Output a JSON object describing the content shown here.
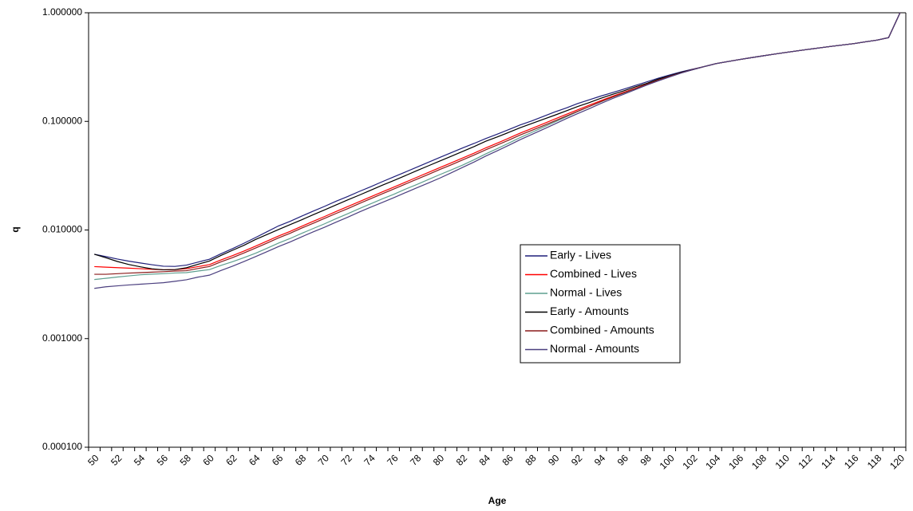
{
  "chart_data": {
    "type": "line",
    "xlabel": "Age",
    "ylabel": "q",
    "categories": [
      "50",
      null,
      "52",
      null,
      "54",
      null,
      "56",
      null,
      "58",
      null,
      "60",
      null,
      "62",
      null,
      "64",
      null,
      "66",
      null,
      "68",
      null,
      "70",
      null,
      "72",
      null,
      "74",
      null,
      "76",
      null,
      "78",
      null,
      "80",
      null,
      "82",
      null,
      "84",
      null,
      "86",
      null,
      "88",
      null,
      "90",
      null,
      "92",
      null,
      "94",
      null,
      "96",
      null,
      "98",
      null,
      "100",
      null,
      "102",
      null,
      "104",
      null,
      "106",
      null,
      "108",
      null,
      "110",
      null,
      "112",
      null,
      "114",
      null,
      "116",
      null,
      "118",
      null,
      "120"
    ],
    "ylim": [
      0.0001,
      1
    ],
    "log_scale": true,
    "grid": false,
    "yticks": [
      {
        "value": 0.0001,
        "label": "0.000100"
      },
      {
        "value": 0.001,
        "label": "0.001000"
      },
      {
        "value": 0.01,
        "label": "0.010000"
      },
      {
        "value": 0.1,
        "label": "0.100000"
      },
      {
        "value": 1,
        "label": "1.000000"
      }
    ],
    "legend": "center-right",
    "series": [
      {
        "name": "Early - Lives",
        "color": "#1f1f7a",
        "values": [
          0.00598,
          0.00569,
          0.0054,
          0.00516,
          0.00497,
          0.00479,
          0.00464,
          0.00462,
          0.00475,
          0.00506,
          0.00538,
          0.00604,
          0.00673,
          0.00755,
          0.00852,
          0.00964,
          0.0109,
          0.012,
          0.0134,
          0.0149,
          0.0165,
          0.0184,
          0.0203,
          0.0226,
          0.025,
          0.0278,
          0.0308,
          0.0341,
          0.0378,
          0.0419,
          0.0465,
          0.0515,
          0.057,
          0.0627,
          0.0695,
          0.0762,
          0.084,
          0.0928,
          0.101,
          0.111,
          0.122,
          0.133,
          0.146,
          0.158,
          0.171,
          0.184,
          0.198,
          0.214,
          0.231,
          0.25,
          0.268,
          0.286,
          0.303,
          0.32,
          0.34,
          0.355,
          0.37,
          0.385,
          0.4,
          0.415,
          0.43,
          0.445,
          0.46,
          0.475,
          0.49,
          0.505,
          0.52,
          0.54,
          0.56,
          0.59,
          1.0
        ]
      },
      {
        "name": "Combined - Lives",
        "color": "#ff0000",
        "values": [
          0.0046,
          0.00455,
          0.0045,
          0.00445,
          0.0044,
          0.00435,
          0.0043,
          0.00432,
          0.0044,
          0.0046,
          0.0048,
          0.0053,
          0.0058,
          0.0064,
          0.0071,
          0.0079,
          0.0088,
          0.0097,
          0.0108,
          0.012,
          0.0133,
          0.0148,
          0.0164,
          0.0182,
          0.0202,
          0.0224,
          0.0248,
          0.0275,
          0.0305,
          0.0338,
          0.0375,
          0.0415,
          0.046,
          0.051,
          0.057,
          0.063,
          0.07,
          0.078,
          0.086,
          0.095,
          0.105,
          0.116,
          0.128,
          0.141,
          0.155,
          0.17,
          0.185,
          0.202,
          0.22,
          0.24,
          0.26,
          0.28,
          0.3,
          0.32,
          0.34,
          0.355,
          0.37,
          0.385,
          0.4,
          0.415,
          0.43,
          0.445,
          0.46,
          0.475,
          0.49,
          0.505,
          0.52,
          0.54,
          0.56,
          0.59,
          1.0
        ]
      },
      {
        "name": "Normal - Lives",
        "color": "#5f9f8f",
        "values": [
          0.0035,
          0.00359,
          0.00369,
          0.00378,
          0.00387,
          0.00392,
          0.00396,
          0.00402,
          0.00405,
          0.00419,
          0.00432,
          0.00472,
          0.0051,
          0.00557,
          0.00611,
          0.00679,
          0.00757,
          0.00834,
          0.00929,
          0.0103,
          0.0114,
          0.0127,
          0.0141,
          0.0157,
          0.0174,
          0.0193,
          0.0213,
          0.0237,
          0.0262,
          0.0291,
          0.0323,
          0.0357,
          0.0396,
          0.0444,
          0.0502,
          0.0561,
          0.063,
          0.071,
          0.0791,
          0.0884,
          0.0987,
          0.11,
          0.123,
          0.137,
          0.151,
          0.167,
          0.182,
          0.2,
          0.218,
          0.239,
          0.259,
          0.28,
          0.3,
          0.32,
          0.34,
          0.355,
          0.37,
          0.385,
          0.4,
          0.415,
          0.43,
          0.445,
          0.46,
          0.475,
          0.49,
          0.505,
          0.52,
          0.54,
          0.56,
          0.59,
          1.0
        ]
      },
      {
        "name": "Early - Amounts",
        "color": "#000000",
        "values": [
          0.00598,
          0.00555,
          0.00513,
          0.00481,
          0.00458,
          0.00439,
          0.0043,
          0.00432,
          0.00449,
          0.00483,
          0.00518,
          0.00583,
          0.0065,
          0.00723,
          0.00817,
          0.00909,
          0.0101,
          0.0112,
          0.0124,
          0.0138,
          0.0153,
          0.017,
          0.0189,
          0.0209,
          0.0232,
          0.0258,
          0.0285,
          0.0316,
          0.0351,
          0.0389,
          0.0431,
          0.0477,
          0.0529,
          0.0587,
          0.0656,
          0.0718,
          0.0791,
          0.0874,
          0.0955,
          0.1045,
          0.114,
          0.125,
          0.137,
          0.149,
          0.163,
          0.177,
          0.191,
          0.208,
          0.224,
          0.245,
          0.263,
          0.283,
          0.3,
          0.32,
          0.34,
          0.355,
          0.37,
          0.385,
          0.4,
          0.415,
          0.43,
          0.445,
          0.46,
          0.475,
          0.49,
          0.505,
          0.52,
          0.54,
          0.56,
          0.59,
          1.0
        ]
      },
      {
        "name": "Combined - Amounts",
        "color": "#8b1a1a",
        "values": [
          0.00391,
          0.00391,
          0.00396,
          0.00401,
          0.00405,
          0.00409,
          0.00413,
          0.00419,
          0.00422,
          0.00442,
          0.00461,
          0.00509,
          0.00557,
          0.00614,
          0.00682,
          0.00758,
          0.00845,
          0.00931,
          0.0104,
          0.0115,
          0.0128,
          0.0142,
          0.0157,
          0.0175,
          0.0194,
          0.0215,
          0.0238,
          0.0264,
          0.0293,
          0.0324,
          0.036,
          0.0398,
          0.0442,
          0.049,
          0.0547,
          0.0605,
          0.0672,
          0.0749,
          0.0826,
          0.0912,
          0.101,
          0.112,
          0.124,
          0.137,
          0.152,
          0.167,
          0.183,
          0.2,
          0.219,
          0.239,
          0.26,
          0.28,
          0.3,
          0.32,
          0.34,
          0.355,
          0.37,
          0.385,
          0.4,
          0.415,
          0.43,
          0.445,
          0.46,
          0.475,
          0.49,
          0.505,
          0.52,
          0.54,
          0.56,
          0.59,
          1.0
        ]
      },
      {
        "name": "Normal - Amounts",
        "color": "#4b3f7f",
        "values": [
          0.0029,
          0.003,
          0.00306,
          0.00312,
          0.00317,
          0.00322,
          0.00327,
          0.00337,
          0.00348,
          0.00368,
          0.00384,
          0.00424,
          0.00464,
          0.00512,
          0.00568,
          0.00632,
          0.00704,
          0.00776,
          0.00864,
          0.0096,
          0.0106,
          0.0118,
          0.0131,
          0.0146,
          0.0162,
          0.0179,
          0.0198,
          0.022,
          0.0244,
          0.027,
          0.03,
          0.0336,
          0.0377,
          0.0423,
          0.0479,
          0.0536,
          0.0602,
          0.0679,
          0.0757,
          0.0846,
          0.0945,
          0.106,
          0.118,
          0.131,
          0.146,
          0.162,
          0.178,
          0.196,
          0.216,
          0.236,
          0.257,
          0.279,
          0.299,
          0.32,
          0.34,
          0.355,
          0.37,
          0.385,
          0.4,
          0.415,
          0.43,
          0.445,
          0.46,
          0.475,
          0.49,
          0.505,
          0.52,
          0.54,
          0.56,
          0.59,
          1.0
        ]
      }
    ]
  }
}
